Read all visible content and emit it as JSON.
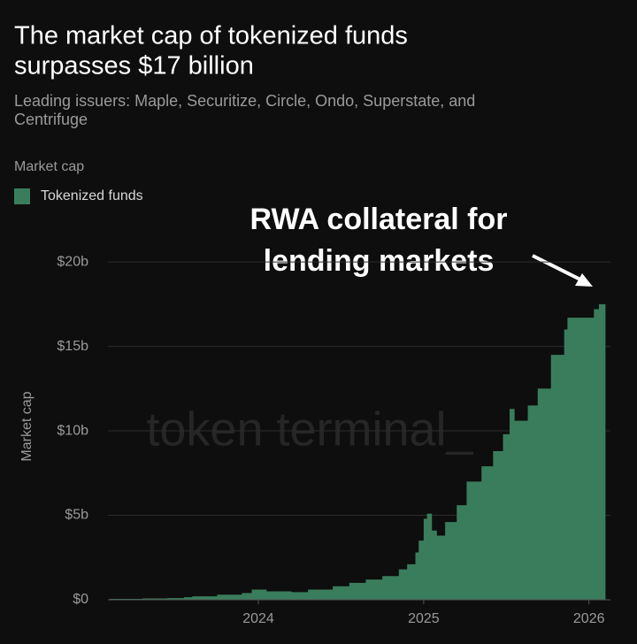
{
  "chart_data": {
    "type": "area",
    "title": [
      "The market cap of tokenized funds",
      "surpasses $17 billion"
    ],
    "subtitle": [
      "Leading issuers: Maple, Securitize, Circle, Ondo, Superstate, and",
      "Centrifuge"
    ],
    "legend_title": "Market cap",
    "y_label": "Market cap",
    "watermark": "token terminal_",
    "annotation": [
      "RWA collateral for",
      "lending markets"
    ],
    "series": [
      {
        "name": "Tokenized funds",
        "color": "#3a7d5c",
        "x": [
          2023.1,
          2023.3,
          2023.45,
          2023.55,
          2023.6,
          2023.75,
          2023.9,
          2023.96,
          2024.05,
          2024.2,
          2024.3,
          2024.45,
          2024.55,
          2024.65,
          2024.75,
          2024.85,
          2024.9,
          2024.95,
          2024.97,
          2025.0,
          2025.02,
          2025.05,
          2025.08,
          2025.13,
          2025.2,
          2025.26,
          2025.35,
          2025.42,
          2025.48,
          2025.52,
          2025.55,
          2025.63,
          2025.69,
          2025.77,
          2025.85,
          2025.87,
          2025.98,
          2026.03,
          2026.06,
          2026.1
        ],
        "values": [
          0.05,
          0.08,
          0.1,
          0.15,
          0.2,
          0.3,
          0.4,
          0.6,
          0.5,
          0.45,
          0.6,
          0.8,
          1.0,
          1.2,
          1.4,
          1.8,
          2.1,
          2.8,
          3.5,
          4.8,
          5.1,
          4.1,
          3.8,
          4.6,
          5.6,
          7.0,
          7.9,
          8.8,
          9.8,
          11.3,
          10.6,
          11.5,
          12.5,
          14.5,
          16.0,
          16.7,
          16.7,
          17.2,
          17.5,
          17.1
        ]
      }
    ],
    "xlim": [
      2023.09,
      2026.13
    ],
    "xticks": [
      2024,
      2025,
      2026
    ],
    "ylim": [
      0,
      21
    ],
    "yticks": [
      {
        "value": 0,
        "label": "$0"
      },
      {
        "value": 5,
        "label": "$5b"
      },
      {
        "value": 10,
        "label": "$10b"
      },
      {
        "value": 15,
        "label": "$15b"
      },
      {
        "value": 20,
        "label": "$20b"
      }
    ],
    "grid": true
  }
}
